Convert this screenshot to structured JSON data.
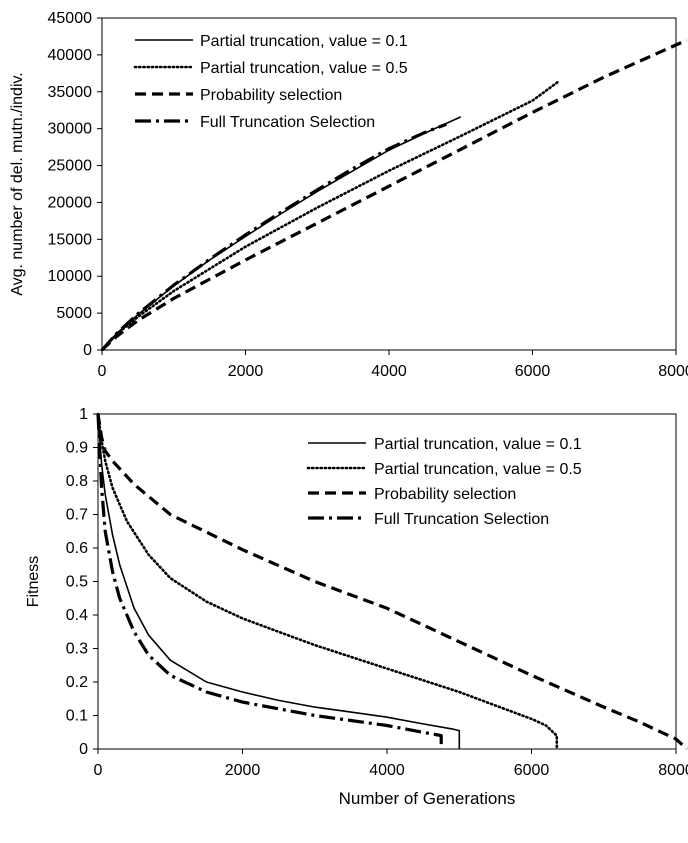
{
  "chart_data": [
    {
      "type": "line",
      "title": "",
      "xlabel": "",
      "ylabel": "Avg. number of del. mutn./indiv.",
      "xlim": [
        0,
        8000
      ],
      "ylim": [
        0,
        45000
      ],
      "xticks": [
        "0",
        "2000",
        "4000",
        "6000",
        "8000"
      ],
      "yticks": [
        "0",
        "5000",
        "10000",
        "15000",
        "20000",
        "25000",
        "30000",
        "35000",
        "40000",
        "45000"
      ],
      "grid": false,
      "legend": "top-left",
      "series": [
        {
          "name": "Partial truncation, value = 0.1",
          "style": "solid",
          "x": [
            0,
            200,
            500,
            1000,
            1500,
            2000,
            2500,
            3000,
            3500,
            4000,
            4500,
            5000
          ],
          "y": [
            0,
            2200,
            4800,
            8700,
            12200,
            15400,
            18500,
            21500,
            24300,
            27100,
            29400,
            31600
          ]
        },
        {
          "name": "Partial truncation, value = 0.5",
          "style": "dotted",
          "x": [
            0,
            200,
            500,
            1000,
            2000,
            3000,
            4000,
            5000,
            6000,
            6350
          ],
          "y": [
            0,
            2100,
            4500,
            8000,
            14000,
            19300,
            24300,
            29000,
            33800,
            36300
          ]
        },
        {
          "name": "Probability selection",
          "style": "dashed",
          "x": [
            0,
            200,
            500,
            1000,
            2000,
            3000,
            4000,
            5000,
            6000,
            7000,
            8150
          ],
          "y": [
            0,
            1800,
            4000,
            7000,
            12200,
            17200,
            22200,
            27200,
            32200,
            37000,
            42000
          ]
        },
        {
          "name": "Full Truncation Selection",
          "style": "dashdot",
          "x": [
            0,
            200,
            500,
            1000,
            1500,
            2000,
            2500,
            3000,
            3500,
            4000,
            4500,
            4800
          ],
          "y": [
            0,
            2200,
            4900,
            8800,
            12300,
            15600,
            18700,
            21700,
            24600,
            27300,
            29500,
            30600
          ]
        }
      ]
    },
    {
      "type": "line",
      "title": "",
      "xlabel": "Number of Generations",
      "ylabel": "Fitness",
      "xlim": [
        0,
        8000
      ],
      "ylim": [
        0,
        1
      ],
      "xticks": [
        "0",
        "2000",
        "4000",
        "6000",
        "8000"
      ],
      "yticks": [
        "0",
        "0.1",
        "0.2",
        "0.3",
        "0.4",
        "0.5",
        "0.6",
        "0.7",
        "0.8",
        "0.9",
        "1"
      ],
      "grid": false,
      "legend": "top-right",
      "series": [
        {
          "name": "Partial truncation, value = 0.1",
          "style": "solid",
          "x": [
            0,
            50,
            100,
            200,
            300,
            500,
            700,
            1000,
            1500,
            2000,
            2500,
            3000,
            3500,
            4000,
            4500,
            4900,
            5000,
            5000
          ],
          "y": [
            1.0,
            0.85,
            0.76,
            0.64,
            0.55,
            0.42,
            0.34,
            0.265,
            0.2,
            0.17,
            0.145,
            0.125,
            0.11,
            0.095,
            0.075,
            0.06,
            0.055,
            0.0
          ]
        },
        {
          "name": "Partial truncation, value = 0.5",
          "style": "dotted",
          "x": [
            0,
            50,
            100,
            200,
            400,
            700,
            1000,
            1500,
            2000,
            2500,
            3000,
            4000,
            5000,
            5500,
            6000,
            6200,
            6300,
            6350,
            6350
          ],
          "y": [
            1.0,
            0.92,
            0.86,
            0.78,
            0.68,
            0.58,
            0.51,
            0.44,
            0.39,
            0.35,
            0.31,
            0.24,
            0.17,
            0.13,
            0.09,
            0.07,
            0.05,
            0.04,
            0.0
          ]
        },
        {
          "name": "Probability selection",
          "style": "dashed",
          "x": [
            0,
            50,
            100,
            200,
            500,
            1000,
            2000,
            3000,
            4000,
            5000,
            6000,
            7000,
            7500,
            7800,
            8000,
            8100,
            8150
          ],
          "y": [
            1.0,
            0.93,
            0.89,
            0.86,
            0.79,
            0.7,
            0.595,
            0.5,
            0.42,
            0.32,
            0.22,
            0.125,
            0.08,
            0.05,
            0.03,
            0.01,
            0.0
          ]
        },
        {
          "name": "Full Truncation Selection",
          "style": "dashdot",
          "x": [
            0,
            50,
            100,
            200,
            300,
            500,
            700,
            1000,
            1500,
            2000,
            2500,
            3000,
            3500,
            4000,
            4500,
            4750,
            4750
          ],
          "y": [
            1.0,
            0.78,
            0.65,
            0.53,
            0.45,
            0.35,
            0.28,
            0.22,
            0.17,
            0.14,
            0.12,
            0.1,
            0.085,
            0.07,
            0.05,
            0.04,
            0.0
          ]
        }
      ]
    }
  ]
}
